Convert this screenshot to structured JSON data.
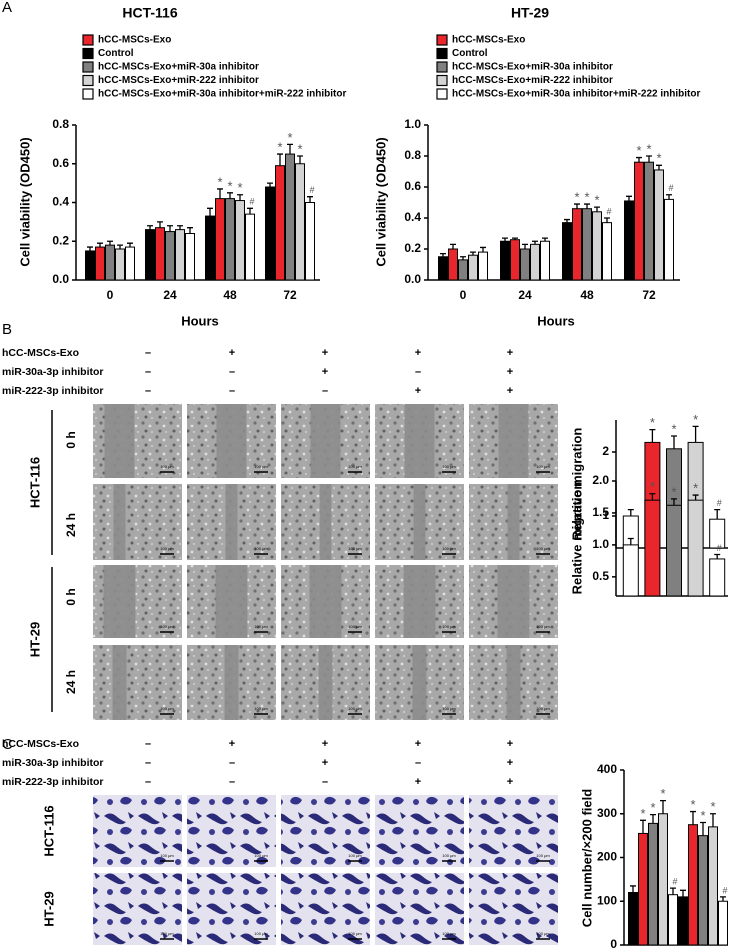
{
  "panel_labels": [
    "A",
    "B",
    "C"
  ],
  "scale_bar": "100 μm",
  "migration": {
    "treatments": [
      {
        "label": "hCC-MSCs-Exo",
        "marks": [
          "–",
          "+",
          "+",
          "+",
          "+"
        ]
      },
      {
        "label": "miR-30a-3p inhibitor",
        "marks": [
          "–",
          "–",
          "+",
          "–",
          "+"
        ]
      },
      {
        "label": "miR-222-3p inhibitor",
        "marks": [
          "–",
          "–",
          "–",
          "+",
          "+"
        ]
      }
    ],
    "cell_lines": [
      {
        "name": "HCT-116",
        "times": [
          "0 h",
          "24 h"
        ]
      },
      {
        "name": "HT-29",
        "times": [
          "0 h",
          "24 h"
        ]
      }
    ]
  },
  "invasion": {
    "treatments": [
      {
        "label": "hCC-MSCs-Exo",
        "marks": [
          "–",
          "+",
          "+",
          "+",
          "+"
        ]
      },
      {
        "label": "miR-30a-3p inhibitor",
        "marks": [
          "–",
          "–",
          "+",
          "–",
          "+"
        ]
      },
      {
        "label": "miR-222-3p inhibitor",
        "marks": [
          "–",
          "–",
          "–",
          "+",
          "+"
        ]
      }
    ],
    "cell_lines": [
      "HCT-116",
      "HT-29"
    ]
  },
  "chart_data": [
    {
      "type": "bar",
      "title": "HCT-116",
      "x_label": "Hours",
      "y_label": "Cell viability (OD450)",
      "categories": [
        "0",
        "24",
        "48",
        "72"
      ],
      "ylim": [
        0,
        0.8
      ],
      "yticks": [
        {
          "value": 0,
          "label": "0.0"
        },
        0.2,
        0.4,
        0.6,
        0.8
      ],
      "series": [
        {
          "name": "hCC-MSCs-Exo",
          "color": "#e8262b",
          "values": [
            0.17,
            0.27,
            0.42,
            0.59
          ],
          "errors": [
            0.02,
            0.03,
            0.05,
            0.06
          ],
          "labels": [
            null,
            null,
            "*",
            "*"
          ]
        },
        {
          "name": "Control",
          "color": "#000000",
          "values": [
            0.15,
            0.26,
            0.33,
            0.48
          ],
          "errors": [
            0.02,
            0.02,
            0.04,
            0.02
          ]
        },
        {
          "name": "hCC-MSCs-Exo+miR-30a inhibitor",
          "color": "#808080",
          "values": [
            0.18,
            0.25,
            0.42,
            0.65
          ],
          "errors": [
            0.02,
            0.03,
            0.03,
            0.05
          ],
          "labels": [
            null,
            null,
            "*",
            "*"
          ]
        },
        {
          "name": "hCC-MSCs-Exo+miR-222 inhibitor",
          "color": "#d3d3d3",
          "values": [
            0.16,
            0.26,
            0.41,
            0.6
          ],
          "errors": [
            0.02,
            0.02,
            0.03,
            0.04
          ],
          "labels": [
            null,
            null,
            "*",
            "*"
          ]
        },
        {
          "name": "hCC-MSCs-Exo+miR-30a inhibitor+miR-222 inhibitor",
          "color": "#ffffff",
          "values": [
            0.17,
            0.24,
            0.34,
            0.4
          ],
          "errors": [
            0.02,
            0.03,
            0.03,
            0.03
          ],
          "labels": [
            null,
            null,
            "#",
            "#"
          ]
        }
      ]
    },
    {
      "type": "bar",
      "title": "HT-29",
      "x_label": "Hours",
      "y_label": "Cell viability (OD450)",
      "categories": [
        "0",
        "24",
        "48",
        "72"
      ],
      "ylim": [
        0,
        1.0
      ],
      "yticks": [
        {
          "value": 0,
          "label": "0.0"
        },
        0.2,
        0.4,
        0.6,
        0.8,
        {
          "value": 1,
          "label": "1.0"
        }
      ],
      "series": [
        {
          "name": "hCC-MSCs-Exo",
          "color": "#e8262b",
          "values": [
            0.2,
            0.26,
            0.46,
            0.76
          ],
          "errors": [
            0.03,
            0.01,
            0.03,
            0.03
          ],
          "labels": [
            null,
            null,
            "*",
            "*"
          ]
        },
        {
          "name": "Control",
          "color": "#000000",
          "values": [
            0.15,
            0.25,
            0.37,
            0.51
          ],
          "errors": [
            0.02,
            0.02,
            0.02,
            0.03
          ]
        },
        {
          "name": "hCC-MSCs-Exo+miR-30a inhibitor",
          "color": "#808080",
          "values": [
            0.13,
            0.2,
            0.46,
            0.76
          ],
          "errors": [
            0.02,
            0.03,
            0.03,
            0.04
          ],
          "labels": [
            null,
            null,
            "*",
            "*"
          ]
        },
        {
          "name": "hCC-MSCs-Exo+miR-222 inhibitor",
          "color": "#d3d3d3",
          "values": [
            0.16,
            0.23,
            0.44,
            0.71
          ],
          "errors": [
            0.02,
            0.02,
            0.03,
            0.03
          ],
          "labels": [
            null,
            null,
            "*",
            "*"
          ]
        },
        {
          "name": "hCC-MSCs-Exo+miR-30a inhibitor+miR-222 inhibitor",
          "color": "#ffffff",
          "values": [
            0.18,
            0.25,
            0.37,
            0.52
          ],
          "errors": [
            0.03,
            0.02,
            0.03,
            0.03
          ],
          "labels": [
            null,
            null,
            "#",
            "#"
          ]
        }
      ]
    },
    {
      "type": "bar",
      "y_label": "Relative migration",
      "ylim": [
        0.5,
        2.5
      ],
      "yticks": [
        1,
        2
      ],
      "values": [
        1.0,
        2.15,
        2.05,
        2.15,
        0.95
      ],
      "errors": [
        0.1,
        0.2,
        0.2,
        0.25,
        0.15
      ],
      "labels": [
        null,
        "*",
        "*",
        "*",
        "#"
      ],
      "colors": [
        "#ffffff",
        "#e8262b",
        "#808080",
        "#d3d3d3",
        "#ffffff"
      ]
    },
    {
      "type": "bar",
      "y_label": "Relative migration",
      "ylim": [
        0.2,
        2.0
      ],
      "yticks": [
        0.5,
        {
          "value": 1,
          "label": "1.0"
        },
        1.5,
        {
          "value": 2,
          "label": "2.0"
        }
      ],
      "values": [
        1.0,
        1.7,
        1.62,
        1.7,
        0.78
      ],
      "errors": [
        0.1,
        0.1,
        0.1,
        0.08,
        0.07
      ],
      "labels": [
        null,
        "*",
        "*",
        "*",
        "#"
      ],
      "colors": [
        "#ffffff",
        "#e8262b",
        "#808080",
        "#d3d3d3",
        "#ffffff"
      ]
    },
    {
      "type": "bar",
      "y_label": "Cell number/×200 field",
      "categories": [
        null,
        null
      ],
      "ylim": [
        0,
        400
      ],
      "yticks": [
        0,
        100,
        200,
        300,
        400
      ],
      "series": [
        {
          "color": "#000000",
          "values": [
            120,
            110
          ],
          "errors": [
            15,
            15
          ]
        },
        {
          "color": "#e8262b",
          "values": [
            255,
            275
          ],
          "errors": [
            30,
            30
          ],
          "labels": [
            "*",
            "*"
          ]
        },
        {
          "color": "#808080",
          "values": [
            278,
            250
          ],
          "errors": [
            20,
            30
          ],
          "labels": [
            "*",
            "*"
          ]
        },
        {
          "color": "#d3d3d3",
          "values": [
            300,
            270
          ],
          "errors": [
            30,
            30
          ],
          "labels": [
            "*",
            "*"
          ]
        },
        {
          "color": "#ffffff",
          "values": [
            115,
            100
          ],
          "errors": [
            15,
            10
          ],
          "labels": [
            "#",
            "#"
          ]
        }
      ]
    }
  ]
}
